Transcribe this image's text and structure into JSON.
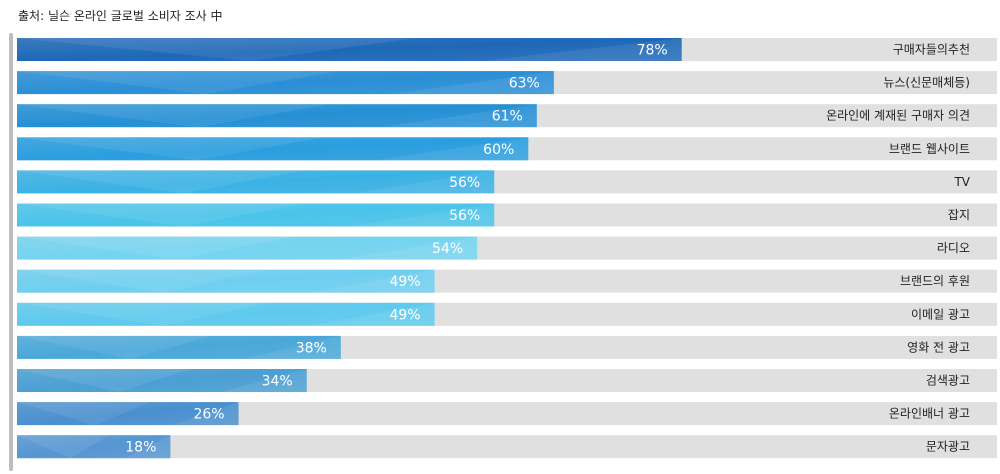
{
  "source_note": "출처: 닐슨 온라인 글로벌 소비자 조사 中",
  "chart_data": {
    "type": "bar",
    "orientation": "horizontal",
    "categories": [
      "구매자들의추천",
      "뉴스(신문매체등)",
      "온라인에 계재된 구매자 의견",
      "브랜드 웹사이트",
      "TV",
      "잡지",
      "라디오",
      "브랜드의 후원",
      "이메일 광고",
      "영화 전 광고",
      "검색광고",
      "온라인배너 광고",
      "문자광고"
    ],
    "values": [
      78,
      63,
      61,
      60,
      56,
      56,
      54,
      49,
      49,
      38,
      34,
      26,
      18
    ],
    "value_labels": [
      "78%",
      "63%",
      "61%",
      "60%",
      "56%",
      "56%",
      "54%",
      "49%",
      "49%",
      "38%",
      "34%",
      "26%",
      "18%"
    ],
    "xlim": [
      0,
      115
    ],
    "bar_colors": [
      "#1e68b8",
      "#2a8fd6",
      "#2590d5",
      "#2a9edf",
      "#3bb2e4",
      "#4ac4ea",
      "#75d4f0",
      "#6fcff0",
      "#5ecaee",
      "#4aa8d9",
      "#4b9fd4",
      "#4a90cf",
      "#5596d2"
    ],
    "track_color": "#e0e0e0"
  }
}
